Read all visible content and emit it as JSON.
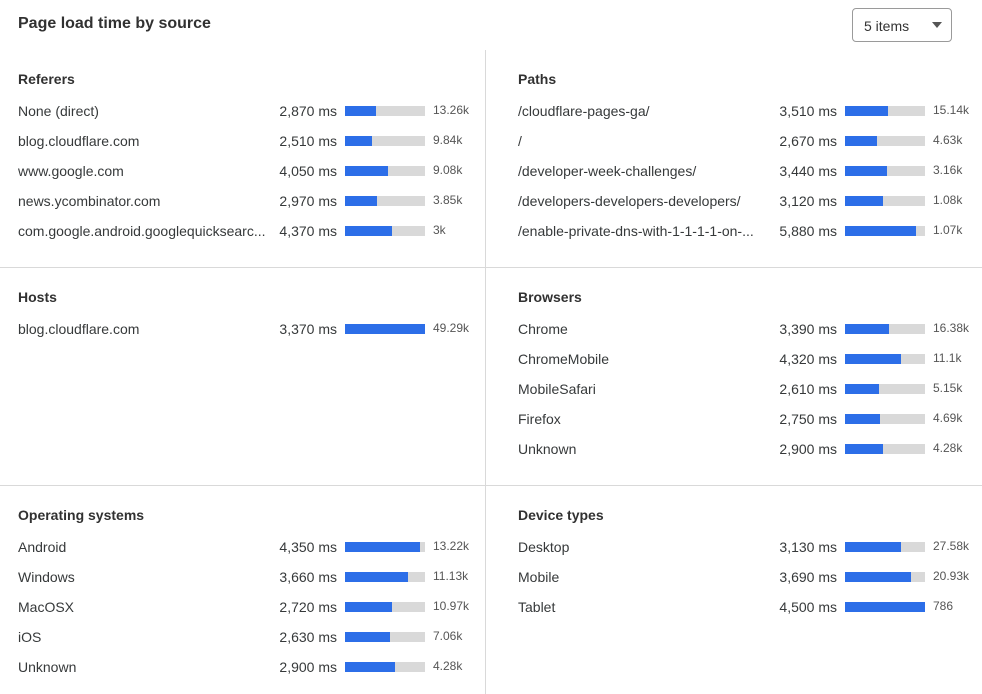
{
  "header": {
    "title": "Page load time by source",
    "select_value": "5 items"
  },
  "colors": {
    "bar_fill": "#2c6ee8",
    "bar_track": "#d9d9d9"
  },
  "sections": [
    {
      "title": "Referers",
      "rows": [
        {
          "label": "None (direct)",
          "ms": "2,870 ms",
          "fill": 0.39,
          "count": "13.26k"
        },
        {
          "label": "blog.cloudflare.com",
          "ms": "2,510 ms",
          "fill": 0.34,
          "count": "9.84k"
        },
        {
          "label": "www.google.com",
          "ms": "4,050 ms",
          "fill": 0.54,
          "count": "9.08k"
        },
        {
          "label": "news.ycombinator.com",
          "ms": "2,970 ms",
          "fill": 0.4,
          "count": "3.85k"
        },
        {
          "label": "com.google.android.googlequicksearc...",
          "ms": "4,370 ms",
          "fill": 0.59,
          "count": "3k"
        }
      ]
    },
    {
      "title": "Paths",
      "rows": [
        {
          "label": "/cloudflare-pages-ga/",
          "ms": "3,510 ms",
          "fill": 0.54,
          "count": "15.14k"
        },
        {
          "label": "/",
          "ms": "2,670 ms",
          "fill": 0.4,
          "count": "4.63k"
        },
        {
          "label": "/developer-week-challenges/",
          "ms": "3,440 ms",
          "fill": 0.53,
          "count": "3.16k"
        },
        {
          "label": "/developers-developers-developers/",
          "ms": "3,120 ms",
          "fill": 0.47,
          "count": "1.08k"
        },
        {
          "label": "/enable-private-dns-with-1-1-1-1-on-...",
          "ms": "5,880 ms",
          "fill": 0.89,
          "count": "1.07k"
        }
      ]
    },
    {
      "title": "Hosts",
      "rows": [
        {
          "label": "blog.cloudflare.com",
          "ms": "3,370 ms",
          "fill": 1.0,
          "count": "49.29k"
        }
      ]
    },
    {
      "title": "Browsers",
      "rows": [
        {
          "label": "Chrome",
          "ms": "3,390 ms",
          "fill": 0.55,
          "count": "16.38k"
        },
        {
          "label": "ChromeMobile",
          "ms": "4,320 ms",
          "fill": 0.7,
          "count": "11.1k"
        },
        {
          "label": "MobileSafari",
          "ms": "2,610 ms",
          "fill": 0.42,
          "count": "5.15k"
        },
        {
          "label": "Firefox",
          "ms": "2,750 ms",
          "fill": 0.44,
          "count": "4.69k"
        },
        {
          "label": "Unknown",
          "ms": "2,900 ms",
          "fill": 0.47,
          "count": "4.28k"
        }
      ]
    },
    {
      "title": "Operating systems",
      "rows": [
        {
          "label": "Android",
          "ms": "4,350 ms",
          "fill": 0.94,
          "count": "13.22k"
        },
        {
          "label": "Windows",
          "ms": "3,660 ms",
          "fill": 0.79,
          "count": "11.13k"
        },
        {
          "label": "MacOSX",
          "ms": "2,720 ms",
          "fill": 0.59,
          "count": "10.97k"
        },
        {
          "label": "iOS",
          "ms": "2,630 ms",
          "fill": 0.56,
          "count": "7.06k"
        },
        {
          "label": "Unknown",
          "ms": "2,900 ms",
          "fill": 0.63,
          "count": "4.28k"
        }
      ]
    },
    {
      "title": "Device types",
      "rows": [
        {
          "label": "Desktop",
          "ms": "3,130 ms",
          "fill": 0.7,
          "count": "27.58k"
        },
        {
          "label": "Mobile",
          "ms": "3,690 ms",
          "fill": 0.83,
          "count": "20.93k"
        },
        {
          "label": "Tablet",
          "ms": "4,500 ms",
          "fill": 1.0,
          "count": "786"
        }
      ]
    }
  ]
}
